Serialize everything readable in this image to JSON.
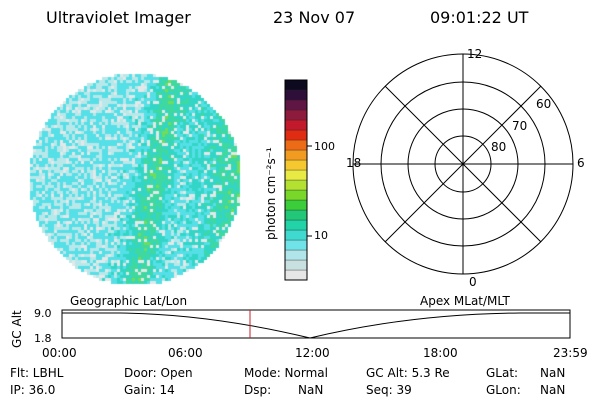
{
  "header": {
    "title": "Ultraviolet Imager",
    "date": "23 Nov 07",
    "time": "09:01:22 UT"
  },
  "colorbar": {
    "unit_label": "photon cm⁻²s⁻¹",
    "tick_labels": [
      "100",
      "10"
    ],
    "colors": [
      "#e6e6e6",
      "#c8e0e0",
      "#b0e6ea",
      "#6fe3e8",
      "#3fd9cf",
      "#22d3a8",
      "#22c877",
      "#3ccd3a",
      "#79d72a",
      "#b4e032",
      "#e9ea44",
      "#f5c830",
      "#f29b21",
      "#ed6a16",
      "#e02c12",
      "#c21a2c",
      "#8f1b3c",
      "#5f1644",
      "#2e0f3a",
      "#0d0a1f"
    ],
    "grid": true
  },
  "image_panel": {
    "description_free": true,
    "palette": [
      "#e3e8e8",
      "#b9e8ea",
      "#55dfe6",
      "#33d6c6",
      "#3fd89e",
      "#6fdc5a",
      "#9ee53a"
    ]
  },
  "polar_plot": {
    "mlt_labels": {
      "top": "12",
      "bottom": "0",
      "left": "18",
      "right": "6"
    },
    "lat_labels": [
      "60",
      "70",
      "80"
    ]
  },
  "timeline": {
    "left_label": "Geographic Lat/Lon",
    "right_label": "Apex MLat/MLT",
    "y_axis_label": "GC Alt",
    "y_ticks": [
      "9.0",
      "1.8"
    ],
    "x_ticks": [
      "00:00",
      "06:00",
      "12:00",
      "18:00",
      "23:59"
    ],
    "marker_color": "#c4202a"
  },
  "info": {
    "flt": "Flt: LBHL",
    "ip": "IP: 36.0",
    "door": "Door: Open",
    "gain": "Gain: 14",
    "mode": "Mode: Normal",
    "dsp": "Dsp:",
    "dsp_value": "NaN",
    "gc_alt": "GC Alt: 5.3 Re",
    "seq": "Seq: 39",
    "glat": "GLat:",
    "glat_value": "NaN",
    "glon": "GLon:",
    "glon_value": "NaN"
  }
}
